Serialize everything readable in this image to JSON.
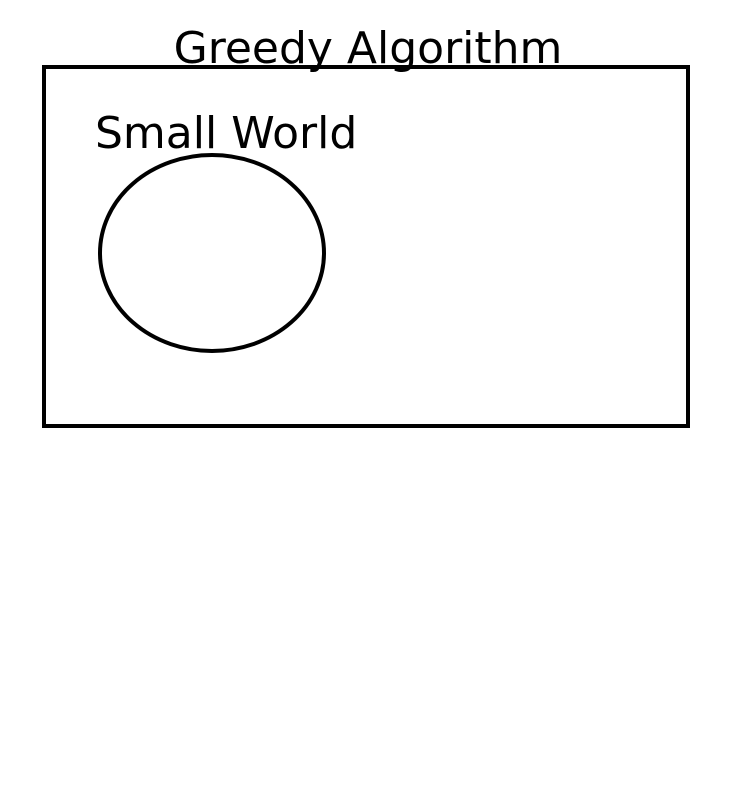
{
  "diagram": {
    "outer_label": "Greedy Algorithm",
    "inner_label": "Small World"
  },
  "colors": {
    "stroke": "#000000",
    "background": "#ffffff"
  }
}
